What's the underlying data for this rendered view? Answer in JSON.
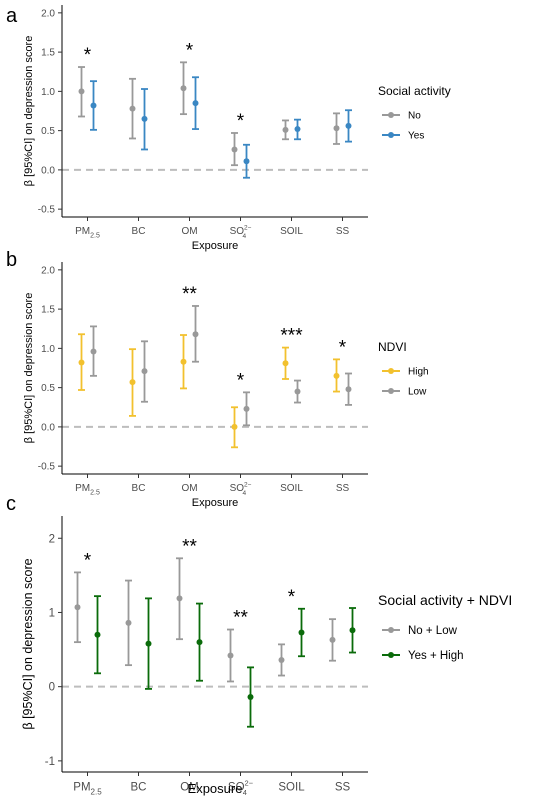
{
  "chart_data": [
    {
      "type": "scatter",
      "panel_letter": "a",
      "ylabel": "β [95%CI] on depression score",
      "xlabel": "Exposure",
      "categories": [
        "PM2.5",
        "BC",
        "OM",
        "SO42-",
        "SOIL",
        "SS"
      ],
      "ylim": [
        -0.6,
        2.1
      ],
      "yticks": [
        -0.5,
        0.0,
        0.5,
        1.0,
        1.5,
        2.0
      ],
      "ytick_labels": [
        "-0.5",
        "0.0",
        "0.5",
        "1.0",
        "1.5",
        "2.0"
      ],
      "reference_line": 0,
      "legend": {
        "title": "Social activity",
        "placement": "right"
      },
      "series": [
        {
          "name": "No",
          "color": "#999999",
          "values": [
            1.0,
            0.78,
            1.04,
            0.26,
            0.51,
            0.53
          ],
          "lower": [
            0.68,
            0.4,
            0.71,
            0.06,
            0.39,
            0.33
          ],
          "upper": [
            1.31,
            1.16,
            1.37,
            0.47,
            0.63,
            0.72
          ]
        },
        {
          "name": "Yes",
          "color": "#3a87c3",
          "values": [
            0.82,
            0.65,
            0.85,
            0.11,
            0.52,
            0.56
          ],
          "lower": [
            0.51,
            0.26,
            0.52,
            -0.1,
            0.39,
            0.36
          ],
          "upper": [
            1.13,
            1.03,
            1.18,
            0.32,
            0.64,
            0.76
          ]
        }
      ],
      "annotations": [
        {
          "category": "PM2.5",
          "text": "*"
        },
        {
          "category": "OM",
          "text": "*"
        },
        {
          "category": "SO42-",
          "text": "*"
        }
      ]
    },
    {
      "type": "scatter",
      "panel_letter": "b",
      "ylabel": "β [95%CI] on depression score",
      "xlabel": "Exposure",
      "categories": [
        "PM2.5",
        "BC",
        "OM",
        "SO42-",
        "SOIL",
        "SS"
      ],
      "ylim": [
        -0.6,
        2.1
      ],
      "yticks": [
        -0.5,
        0.0,
        0.5,
        1.0,
        1.5,
        2.0
      ],
      "ytick_labels": [
        "-0.5",
        "0.0",
        "0.5",
        "1.0",
        "1.5",
        "2.0"
      ],
      "reference_line": 0,
      "legend": {
        "title": "NDVI",
        "placement": "right"
      },
      "series": [
        {
          "name": "High",
          "color": "#f2c12e",
          "values": [
            0.82,
            0.57,
            0.83,
            0.0,
            0.81,
            0.65
          ],
          "lower": [
            0.47,
            0.14,
            0.49,
            -0.26,
            0.61,
            0.45
          ],
          "upper": [
            1.18,
            0.99,
            1.17,
            0.25,
            1.01,
            0.86
          ]
        },
        {
          "name": "Low",
          "color": "#999999",
          "values": [
            0.96,
            0.71,
            1.18,
            0.23,
            0.45,
            0.48
          ],
          "lower": [
            0.65,
            0.32,
            0.83,
            0.02,
            0.31,
            0.28
          ],
          "upper": [
            1.28,
            1.09,
            1.54,
            0.44,
            0.59,
            0.68
          ]
        }
      ],
      "annotations": [
        {
          "category": "OM",
          "text": "**"
        },
        {
          "category": "SO42-",
          "text": "*"
        },
        {
          "category": "SOIL",
          "text": "***"
        },
        {
          "category": "SS",
          "text": "*"
        }
      ]
    },
    {
      "type": "scatter",
      "panel_letter": "c",
      "ylabel": "β [95%CI] on depression score",
      "xlabel": "Exposure",
      "categories": [
        "PM2.5",
        "BC",
        "OM",
        "SO42-",
        "SOIL",
        "SS"
      ],
      "ylim": [
        -1.15,
        2.3
      ],
      "yticks": [
        -1,
        0,
        1,
        2
      ],
      "ytick_labels": [
        "-1",
        "0",
        "1",
        "2"
      ],
      "reference_line": 0,
      "legend": {
        "title": "Social activity + NDVI",
        "placement": "right"
      },
      "series": [
        {
          "name": "No + Low",
          "color": "#999999",
          "values": [
            1.07,
            0.86,
            1.19,
            0.42,
            0.36,
            0.63
          ],
          "lower": [
            0.6,
            0.29,
            0.64,
            0.07,
            0.15,
            0.35
          ],
          "upper": [
            1.54,
            1.43,
            1.73,
            0.77,
            0.57,
            0.91
          ]
        },
        {
          "name": "Yes + High",
          "color": "#0a6b0a",
          "values": [
            0.7,
            0.58,
            0.6,
            -0.14,
            0.73,
            0.76
          ],
          "lower": [
            0.18,
            -0.03,
            0.08,
            -0.54,
            0.41,
            0.46
          ],
          "upper": [
            1.22,
            1.19,
            1.12,
            0.26,
            1.05,
            1.06
          ]
        }
      ],
      "annotations": [
        {
          "category": "PM2.5",
          "text": "*"
        },
        {
          "category": "OM",
          "text": "**"
        },
        {
          "category": "SO42-",
          "text": "**"
        },
        {
          "category": "SOIL",
          "text": "*"
        }
      ]
    }
  ]
}
